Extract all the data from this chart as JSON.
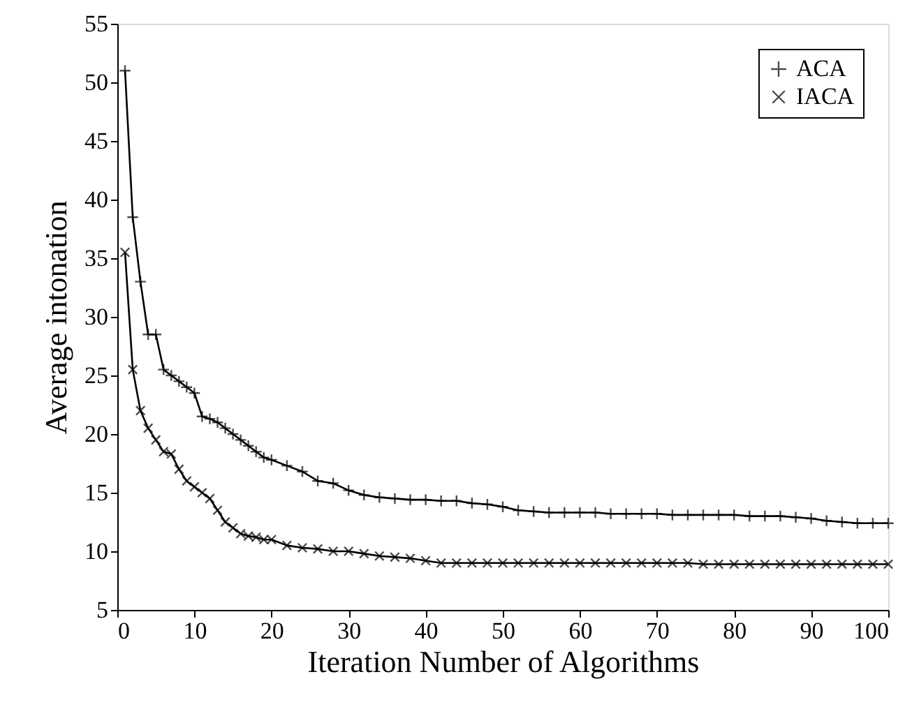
{
  "chart_data": {
    "type": "line",
    "xlabel": "Iteration Number of Algorithms",
    "ylabel": "Average intonation",
    "xlim": [
      0,
      100
    ],
    "ylim": [
      5,
      55
    ],
    "xticks": [
      0,
      10,
      20,
      30,
      40,
      50,
      60,
      70,
      80,
      90,
      100
    ],
    "yticks": [
      5,
      10,
      15,
      20,
      25,
      30,
      35,
      40,
      45,
      50,
      55
    ],
    "grid": false,
    "legend": "top right",
    "line_style": "solid",
    "series": [
      {
        "name": "ACA",
        "color": "#000000",
        "marker": "cross",
        "x": [
          1,
          2,
          3,
          4,
          5,
          6,
          7,
          8,
          9,
          10,
          11,
          12,
          13,
          14,
          15,
          16,
          17,
          18,
          19,
          20,
          22,
          24,
          26,
          28,
          30,
          32,
          34,
          36,
          38,
          40,
          42,
          44,
          46,
          48,
          50,
          52,
          54,
          56,
          58,
          60,
          62,
          64,
          66,
          68,
          70,
          72,
          74,
          76,
          78,
          80,
          82,
          84,
          86,
          88,
          90,
          92,
          94,
          96,
          98,
          100
        ],
        "values": [
          51,
          38.5,
          33,
          28.5,
          28.5,
          25.5,
          25,
          24.5,
          24,
          23.5,
          21.5,
          21.3,
          21,
          20.5,
          20,
          19.5,
          19,
          18.5,
          18,
          17.8,
          17.3,
          16.8,
          16,
          15.8,
          15.2,
          14.8,
          14.6,
          14.5,
          14.4,
          14.4,
          14.3,
          14.3,
          14.1,
          14,
          13.8,
          13.5,
          13.4,
          13.3,
          13.3,
          13.3,
          13.3,
          13.2,
          13.2,
          13.2,
          13.2,
          13.1,
          13.1,
          13.1,
          13.1,
          13.1,
          13,
          13,
          13,
          12.9,
          12.8,
          12.6,
          12.5,
          12.4,
          12.4,
          12.4
        ]
      },
      {
        "name": "IACA",
        "color": "#000000",
        "marker": "x",
        "x": [
          1,
          2,
          3,
          4,
          5,
          6,
          7,
          8,
          9,
          10,
          11,
          12,
          13,
          14,
          15,
          16,
          17,
          18,
          19,
          20,
          22,
          24,
          26,
          28,
          30,
          32,
          34,
          36,
          38,
          40,
          42,
          44,
          46,
          48,
          50,
          52,
          54,
          56,
          58,
          60,
          62,
          64,
          66,
          68,
          70,
          72,
          74,
          76,
          78,
          80,
          82,
          84,
          86,
          88,
          90,
          92,
          94,
          96,
          98,
          100
        ],
        "values": [
          35.5,
          25.5,
          22,
          20.5,
          19.5,
          18.5,
          18.3,
          17,
          16,
          15.5,
          15,
          14.5,
          13.5,
          12.5,
          12,
          11.5,
          11.3,
          11.2,
          11,
          11,
          10.5,
          10.3,
          10.2,
          10,
          10,
          9.8,
          9.6,
          9.5,
          9.4,
          9.2,
          9,
          9,
          9,
          9,
          9,
          9,
          9,
          9,
          9,
          9,
          9,
          9,
          9,
          9,
          9,
          9,
          9,
          8.9,
          8.9,
          8.9,
          8.9,
          8.9,
          8.9,
          8.9,
          8.9,
          8.9,
          8.9,
          8.9,
          8.9,
          8.9
        ]
      }
    ]
  }
}
